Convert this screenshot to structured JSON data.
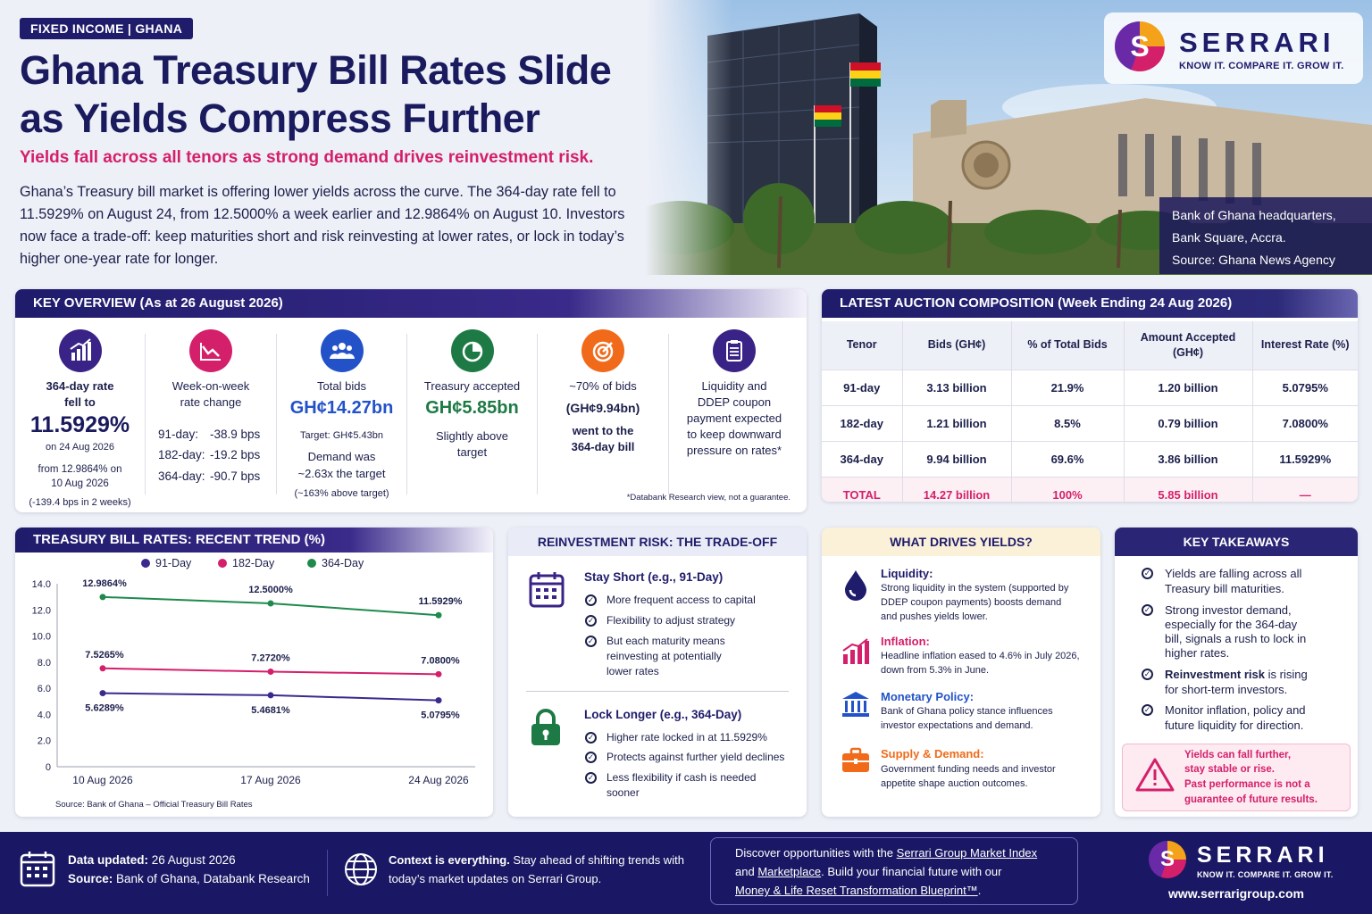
{
  "header": {
    "tag": "FIXED INCOME | GHANA",
    "title_line1": "Ghana Treasury Bill Rates Slide",
    "title_line2": "as Yields Compress Further",
    "subtitle": "Yields fall across all tenors as strong demand drives reinvestment risk.",
    "intro": "Ghana’s Treasury bill market is offering lower yields across the curve. The 364-day rate fell to 11.5929% on August 24, from 12.5000% a week earlier and 12.9864% on August 10. Investors now face a trade-off: keep maturities short and risk reinvesting at lower rates, or lock in today’s higher one-year rate for longer."
  },
  "brand": {
    "name": "SERRARI",
    "tagline": "KNOW IT. COMPARE IT. GROW IT.",
    "url": "www.serrarigroup.com",
    "colors": {
      "navy": "#1f1c6b",
      "magenta": "#d41f6b",
      "orange": "#f4a21a",
      "purple": "#6a2aa8"
    }
  },
  "photo": {
    "caption_line1": "Bank of Ghana headquarters,",
    "caption_line2": "Bank Square, Accra.",
    "caption_line3": "Source: Ghana News Agency"
  },
  "key_overview": {
    "heading": "KEY OVERVIEW (As at 26 August 2026)",
    "c1": {
      "icon": "bar-chart-up-icon",
      "label1": "364-day rate",
      "label2": "fell to",
      "value": "11.5929%",
      "date": "on 24 Aug 2026",
      "from1": "from 12.9864% on",
      "from2": "10 Aug 2026",
      "note": "(-139.4 bps in 2 weeks)"
    },
    "c2": {
      "icon": "line-chart-down-icon",
      "label1": "Week-on-week",
      "label2": "rate change",
      "rows": [
        [
          "91-day:",
          "-38.9 bps"
        ],
        [
          "182-day:",
          "-19.2 bps"
        ],
        [
          "364-day:",
          "-90.7 bps"
        ]
      ]
    },
    "c3": {
      "icon": "people-icon",
      "label": "Total bids",
      "value": "GH¢14.27bn",
      "target": "Target: GH¢5.43bn",
      "demand1": "Demand was",
      "demand2": "~2.63x the target",
      "note": "(~163% above target)"
    },
    "c4": {
      "icon": "pie-chart-icon",
      "label": "Treasury accepted",
      "value": "GH¢5.85bn",
      "sub1": "Slightly above",
      "sub2": "target"
    },
    "c5": {
      "icon": "target-icon",
      "l1": "~70% of bids",
      "l2": "(GH¢9.94bn)",
      "l3": "went to the",
      "l4": "364-day bill"
    },
    "c6": {
      "icon": "clipboard-icon",
      "l1": "Liquidity and",
      "l2": "DDEP coupon",
      "l3": "payment expected",
      "l4": "to keep downward",
      "l5": "pressure on rates*"
    },
    "footnote": "*Databank Research view, not a guarantee."
  },
  "auction": {
    "heading": "LATEST AUCTION COMPOSITION (Week Ending 24 Aug 2026)",
    "columns": [
      "Tenor",
      "Bids (GH¢)",
      "% of Total Bids",
      "Amount Accepted (GH¢)",
      "Interest Rate (%)"
    ],
    "rows": [
      [
        "91-day",
        "3.13 billion",
        "21.9%",
        "1.20 billion",
        "5.0795%"
      ],
      [
        "182-day",
        "1.21 billion",
        "8.5%",
        "0.79 billion",
        "7.0800%"
      ],
      [
        "364-day",
        "9.94 billion",
        "69.6%",
        "3.86 billion",
        "11.5929%"
      ]
    ],
    "total": [
      "TOTAL",
      "14.27 billion",
      "100%",
      "5.85 billion",
      "—"
    ]
  },
  "trend": {
    "heading": "TREASURY BILL RATES: RECENT TREND (%)",
    "source": "Source: Bank of Ghana – Official Treasury Bill Rates"
  },
  "chart_data": {
    "type": "line",
    "title": "TREASURY BILL RATES: RECENT TREND (%)",
    "x": [
      "10 Aug 2026",
      "17 Aug 2026",
      "24 Aug 2026"
    ],
    "ylim": [
      0,
      14
    ],
    "yticks": [
      "0",
      "2.0",
      "4.0",
      "6.0",
      "8.0",
      "10.0",
      "12.0",
      "14.0"
    ],
    "legend_position": "top",
    "series": [
      {
        "name": "91-Day",
        "color": "#3b2a8e",
        "values": [
          5.6289,
          5.4681,
          5.0795
        ],
        "labels": [
          "5.6289%",
          "5.4681%",
          "5.0795%"
        ]
      },
      {
        "name": "182-Day",
        "color": "#d41f6b",
        "values": [
          7.5265,
          7.272,
          7.08
        ],
        "labels": [
          "7.5265%",
          "7.2720%",
          "7.0800%"
        ]
      },
      {
        "name": "364-Day",
        "color": "#1e8a4c",
        "values": [
          12.9864,
          12.5,
          11.5929
        ],
        "labels": [
          "12.9864%",
          "12.5000%",
          "11.5929%"
        ]
      }
    ]
  },
  "reinvestment": {
    "heading": "REINVESTMENT RISK: THE TRADE-OFF",
    "short": {
      "title": "Stay Short (e.g., 91-Day)",
      "items": [
        "More frequent access to capital",
        "Flexibility to adjust strategy",
        "But each maturity means",
        "reinvesting at potentially",
        "lower rates"
      ]
    },
    "long": {
      "title": "Lock Longer (e.g., 364-Day)",
      "items": [
        "Higher rate locked in at 11.5929%",
        "Protects against further yield declines",
        "Less flexibility if cash is needed",
        "sooner"
      ]
    }
  },
  "drivers": {
    "heading": "WHAT DRIVES YIELDS?",
    "items": [
      {
        "title": "Liquidity:",
        "l1": "Strong liquidity in the system (supported by",
        "l2": "DDEP coupon payments) boosts demand",
        "l3": "and pushes yields lower."
      },
      {
        "title": "Inflation:",
        "l1": "Headline inflation eased to 4.6% in July 2026,",
        "l2": "down from 5.3% in June.",
        "l3": ""
      },
      {
        "title": "Monetary Policy:",
        "l1": "Bank of Ghana policy stance influences",
        "l2": "investor expectations and demand.",
        "l3": ""
      },
      {
        "title": "Supply & Demand:",
        "l1": "Government funding needs and investor",
        "l2": "appetite shape auction outcomes.",
        "l3": ""
      }
    ]
  },
  "takeaways": {
    "heading": "KEY TAKEAWAYS",
    "t1": [
      "Yields are falling across all",
      "Treasury bill maturities."
    ],
    "t2": [
      "Strong investor demand,",
      "especially for the 364-day",
      "bill, signals a rush to lock in",
      "higher rates."
    ],
    "t3a": "Reinvestment risk",
    "t3b": " is rising",
    "t3c": "for short-term investors.",
    "t4": [
      "Monitor inflation, policy and",
      "future liquidity for direction."
    ],
    "warning": [
      "Yields can fall further,",
      "stay stable or rise.",
      "Past performance is not a",
      "guarantee of future results."
    ]
  },
  "footer": {
    "updated_label": "Data updated:",
    "updated_value": " 26 August 2026",
    "source_label": "Source:",
    "source_value": " Bank of Ghana, Databank Research",
    "context_bold": "Context is everything.",
    "context_rest": " Stay ahead of shifting trends with",
    "context_line2": "today’s market updates on Serrari Group.",
    "promo1a": "Discover opportunities with the ",
    "promo1b": "Serrari Group Market Index",
    "promo2a": "and ",
    "promo2b": "Marketplace",
    "promo2c": ". Build your financial future with our",
    "promo3a": "Money & Life Reset Transformation Blueprint™",
    "promo3b": "."
  }
}
